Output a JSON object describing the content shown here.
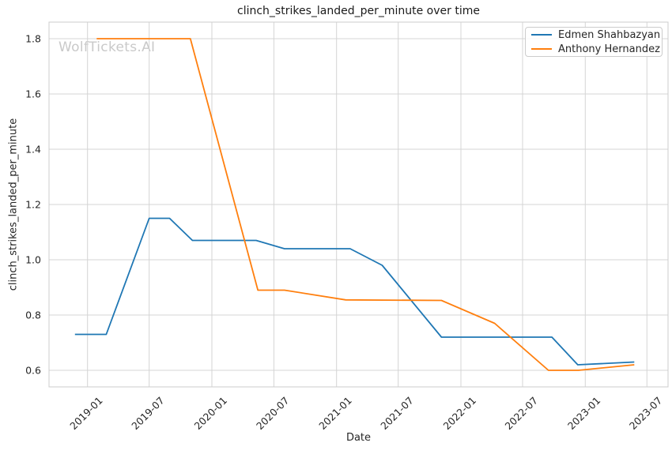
{
  "title": "clinch_strikes_landed_per_minute over time",
  "watermark": "WolfTickets.AI",
  "chart_data": {
    "type": "line",
    "title": "clinch_strikes_landed_per_minute over time",
    "xlabel": "Date",
    "ylabel": "clinch_strikes_landed_per_minute",
    "grid": true,
    "legend_position": "upper right",
    "x_tick_labels": [
      "2019-01",
      "2019-07",
      "2020-01",
      "2020-07",
      "2021-01",
      "2021-07",
      "2022-01",
      "2022-07",
      "2023-01",
      "2023-07"
    ],
    "y_tick_labels": [
      "0.6",
      "0.8",
      "1.0",
      "1.2",
      "1.4",
      "1.6",
      "1.8"
    ],
    "xlim": [
      "2018-09-10",
      "2023-09-01"
    ],
    "ylim": [
      0.54,
      1.86
    ],
    "series": [
      {
        "name": "Edmen Shahbazyan",
        "color": "#1f77b4",
        "points": [
          {
            "date": "2018-11-25",
            "value": 0.73
          },
          {
            "date": "2019-02-25",
            "value": 0.73
          },
          {
            "date": "2019-07-01",
            "value": 1.15
          },
          {
            "date": "2019-08-30",
            "value": 1.15
          },
          {
            "date": "2019-11-05",
            "value": 1.07
          },
          {
            "date": "2020-05-10",
            "value": 1.07
          },
          {
            "date": "2020-08-01",
            "value": 1.04
          },
          {
            "date": "2021-02-10",
            "value": 1.04
          },
          {
            "date": "2021-05-15",
            "value": 0.98
          },
          {
            "date": "2021-11-05",
            "value": 0.72
          },
          {
            "date": "2022-09-25",
            "value": 0.72
          },
          {
            "date": "2022-12-10",
            "value": 0.62
          },
          {
            "date": "2023-05-25",
            "value": 0.63
          }
        ]
      },
      {
        "name": "Anthony Hernandez",
        "color": "#ff7f0e",
        "points": [
          {
            "date": "2019-01-28",
            "value": 1.8
          },
          {
            "date": "2019-10-30",
            "value": 1.8
          },
          {
            "date": "2020-05-15",
            "value": 0.89
          },
          {
            "date": "2020-08-01",
            "value": 0.89
          },
          {
            "date": "2021-01-28",
            "value": 0.855
          },
          {
            "date": "2021-11-05",
            "value": 0.853
          },
          {
            "date": "2022-04-10",
            "value": 0.77
          },
          {
            "date": "2022-09-15",
            "value": 0.6
          },
          {
            "date": "2022-12-12",
            "value": 0.6
          },
          {
            "date": "2023-05-25",
            "value": 0.62
          }
        ]
      }
    ]
  }
}
